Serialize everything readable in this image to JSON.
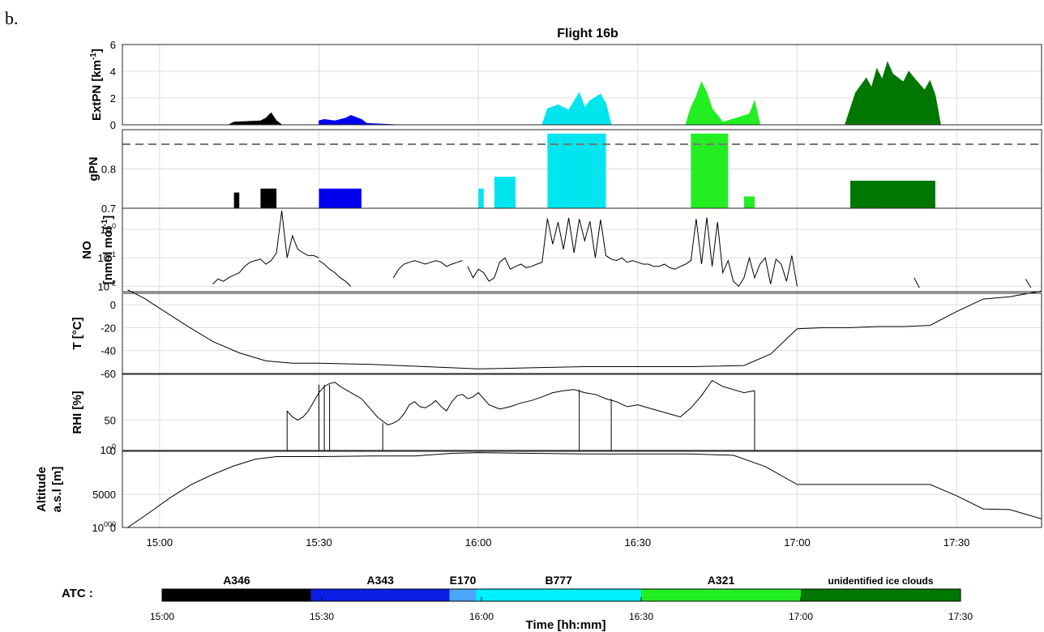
{
  "panel_letter": "b.",
  "chart_data": {
    "type": "line",
    "title": "Flight 16b",
    "xlabel": "Time [hh:mm]",
    "x_ticks": [
      "15:00",
      "15:30",
      "16:00",
      "16:30",
      "17:00",
      "17:30"
    ],
    "xlim": [
      "14:53",
      "17:46"
    ],
    "grid": true,
    "panels": [
      {
        "ylabel": "ExtPN [km-1]",
        "ylim": [
          0,
          6
        ],
        "yticks": [
          "0",
          "2",
          "4",
          "6"
        ],
        "series": [
          {
            "color": "#000000",
            "x": [
              "15:00",
              "15:13",
              "15:14",
              "15:19",
              "15:20",
              "15:21",
              "15:22",
              "15:23",
              "15:30"
            ],
            "y": [
              0,
              0,
              0.2,
              0.3,
              0.5,
              0.9,
              0.3,
              0,
              0
            ]
          },
          {
            "color": "#0000ee",
            "x": [
              "15:30",
              "15:31",
              "15:33",
              "15:35",
              "15:36",
              "15:38",
              "15:39",
              "15:45",
              "15:55"
            ],
            "y": [
              0.3,
              0.4,
              0.3,
              0.5,
              0.7,
              0.4,
              0.1,
              0,
              0
            ]
          },
          {
            "color": "#00e5ee",
            "x": [
              "15:55",
              "16:12",
              "16:13",
              "16:15",
              "16:17",
              "16:19",
              "16:20",
              "16:21",
              "16:23",
              "16:24",
              "16:25",
              "16:30"
            ],
            "y": [
              0,
              0,
              1.2,
              1.5,
              1.1,
              2.4,
              1.3,
              1.8,
              2.3,
              1.6,
              0,
              0
            ]
          },
          {
            "color": "#22ee22",
            "x": [
              "16:30",
              "16:39",
              "16:40",
              "16:41",
              "16:42",
              "16:43",
              "16:44",
              "16:46",
              "16:51",
              "16:52",
              "16:53",
              "17:00"
            ],
            "y": [
              0,
              0,
              1.3,
              2.1,
              3.2,
              2.4,
              1.2,
              0.2,
              0.8,
              1.8,
              0,
              0
            ]
          },
          {
            "color": "#007700",
            "x": [
              "17:00",
              "17:09",
              "17:10",
              "17:11",
              "17:13",
              "17:14",
              "17:15",
              "17:16",
              "17:17",
              "17:18",
              "17:20",
              "17:21",
              "17:22",
              "17:24",
              "17:25",
              "17:26",
              "17:27"
            ],
            "y": [
              0,
              0,
              1.2,
              2.4,
              3.5,
              2.8,
              4.2,
              3.4,
              4.7,
              3.8,
              3.2,
              4.0,
              3.5,
              2.6,
              3.3,
              2.2,
              0
            ]
          }
        ]
      },
      {
        "ylabel": "gPN",
        "ylim": [
          0.7,
          0.9
        ],
        "yticks": [
          "0.7",
          "0.8"
        ],
        "reference_line": 0.9,
        "blocks": [
          {
            "color": "#000000",
            "ranges": [
              [
                "15:14",
                "15:15",
                "0.74"
              ],
              [
                "15:19",
                "15:22",
                "0.75"
              ]
            ]
          },
          {
            "color": "#0000ee",
            "ranges": [
              [
                "15:30",
                "15:38",
                "0.75"
              ]
            ]
          },
          {
            "color": "#00e5ee",
            "ranges": [
              [
                "16:00",
                "16:01",
                "0.75"
              ],
              [
                "16:03",
                "16:07",
                "0.78"
              ],
              [
                "16:13",
                "16:24",
                "0.89"
              ]
            ]
          },
          {
            "color": "#22ee22",
            "ranges": [
              [
                "16:40",
                "16:47",
                "0.89"
              ],
              [
                "16:50",
                "16:52",
                "0.73"
              ]
            ]
          },
          {
            "color": "#007700",
            "ranges": [
              [
                "17:10",
                "17:26",
                "0.77"
              ]
            ]
          }
        ]
      },
      {
        "ylabel": "NO [nmol mol-1]",
        "scale": "log",
        "ylim": [
          0.0065,
          5.5
        ],
        "yticks": [
          "10-2",
          "10-1",
          "100"
        ],
        "series": [
          {
            "color": "#000000",
            "x": [
              "15:10",
              "15:11",
              "15:12",
              "15:13",
              "15:14",
              "15:15",
              "15:16",
              "15:17",
              "15:18",
              "15:19",
              "15:20",
              "15:21",
              "15:22",
              "15:23",
              "15:24",
              "15:25",
              "15:26",
              "15:27",
              "15:28",
              "15:29",
              "15:30"
            ],
            "y": [
              0.012,
              0.018,
              0.015,
              0.02,
              0.025,
              0.03,
              0.05,
              0.07,
              0.08,
              0.09,
              0.06,
              0.08,
              0.15,
              4.5,
              0.1,
              0.6,
              0.2,
              0.15,
              0.12,
              0.12,
              0.1
            ]
          },
          {
            "color": "#000000",
            "x": [
              "15:30",
              "15:31",
              "15:32",
              "15:33",
              "15:34",
              "15:35",
              "15:36"
            ],
            "y": [
              0.08,
              0.06,
              0.04,
              0.03,
              0.02,
              0.015,
              0.01
            ]
          },
          {
            "color": "#000000",
            "x": [
              "15:44",
              "15:45",
              "15:46",
              "15:47",
              "15:48",
              "15:49",
              "15:50",
              "15:51",
              "15:52",
              "15:53",
              "15:54",
              "15:55",
              "15:56",
              "15:57"
            ],
            "y": [
              0.02,
              0.04,
              0.06,
              0.07,
              0.08,
              0.07,
              0.06,
              0.07,
              0.08,
              0.07,
              0.05,
              0.06,
              0.07,
              0.08
            ]
          },
          {
            "color": "#000000",
            "x": [
              "15:58",
              "15:59",
              "16:00",
              "16:01",
              "16:02",
              "16:03",
              "16:04",
              "16:05",
              "16:06",
              "16:07",
              "16:08",
              "16:09",
              "16:10",
              "16:11",
              "16:12",
              "16:13",
              "16:14",
              "16:15",
              "16:16",
              "16:17",
              "16:18",
              "16:19",
              "16:20",
              "16:21",
              "16:22",
              "16:23",
              "16:24",
              "16:25",
              "16:26",
              "16:27",
              "16:28",
              "16:29",
              "16:30"
            ],
            "y": [
              0.05,
              0.02,
              0.04,
              0.03,
              0.015,
              0.02,
              0.07,
              0.1,
              0.04,
              0.05,
              0.06,
              0.045,
              0.05,
              0.06,
              0.07,
              2.4,
              0.3,
              1.8,
              0.2,
              2.5,
              0.15,
              2.3,
              0.4,
              1.9,
              0.1,
              2.2,
              0.12,
              0.09,
              0.08,
              0.1,
              0.07,
              0.08,
              0.07
            ]
          },
          {
            "color": "#000000",
            "x": [
              "16:30",
              "16:31",
              "16:32",
              "16:33",
              "16:34",
              "16:35",
              "16:36",
              "16:37",
              "16:38",
              "16:39",
              "16:40",
              "16:41",
              "16:42",
              "16:43",
              "16:44",
              "16:45",
              "16:46",
              "16:47",
              "16:48",
              "16:49",
              "16:50",
              "16:51",
              "16:52",
              "16:53",
              "16:54",
              "16:55",
              "16:56",
              "16:57",
              "16:58",
              "16:59",
              "17:00"
            ],
            "y": [
              0.07,
              0.06,
              0.06,
              0.05,
              0.05,
              0.06,
              0.045,
              0.04,
              0.05,
              0.06,
              0.08,
              2.3,
              0.06,
              2.6,
              0.05,
              1.8,
              0.03,
              0.08,
              0.015,
              0.01,
              0.02,
              0.1,
              0.02,
              0.06,
              0.1,
              0.012,
              0.09,
              0.06,
              0.015,
              0.12,
              0.01
            ]
          },
          {
            "color": "#000000",
            "x": [
              "17:22",
              "17:23"
            ],
            "y": [
              0.02,
              0.009
            ]
          },
          {
            "color": "#000000",
            "x": [
              "17:43",
              "17:44"
            ],
            "y": [
              0.018,
              0.009
            ]
          }
        ]
      },
      {
        "ylabel": "T [°C]",
        "ylim": [
          -60,
          10
        ],
        "yticks": [
          "-60",
          "-40",
          "-20",
          "0"
        ],
        "series": [
          {
            "color": "#000000",
            "x": [
              "14:54",
              "14:57",
              "15:00",
              "15:05",
              "15:10",
              "15:15",
              "15:20",
              "15:25",
              "15:30",
              "15:40",
              "15:50",
              "16:00",
              "16:10",
              "16:20",
              "16:30",
              "16:40",
              "16:50",
              "16:55",
              "17:00",
              "17:05",
              "17:10",
              "17:15",
              "17:20",
              "17:25",
              "17:30",
              "17:35",
              "17:40",
              "17:46"
            ],
            "y": [
              13,
              6,
              -3,
              -18,
              -32,
              -42,
              -49,
              -51,
              -51,
              -52,
              -54,
              -56,
              -55,
              -54,
              -54,
              -54,
              -53,
              -43,
              -21,
              -20,
              -20,
              -19,
              -19,
              -18,
              -6,
              5,
              7,
              12
            ]
          }
        ]
      },
      {
        "ylabel": "RHI [%]",
        "ylim": [
          0,
          125
        ],
        "yticks": [
          "0",
          "50",
          "100"
        ],
        "series": [
          {
            "color": "#000000",
            "x": [
              "15:24",
              "15:25",
              "15:26",
              "15:27",
              "15:28",
              "15:29",
              "15:30",
              "15:31",
              "15:32",
              "15:33",
              "15:34",
              "15:35",
              "15:36",
              "15:37",
              "15:38",
              "15:39",
              "15:40",
              "15:41",
              "15:42",
              "15:43",
              "15:44",
              "15:45",
              "15:46",
              "15:47",
              "15:48",
              "15:49",
              "15:50",
              "15:51",
              "15:52",
              "15:53",
              "15:54",
              "15:55",
              "15:56",
              "15:57",
              "15:58",
              "15:59",
              "16:00",
              "16:02",
              "16:04",
              "16:06",
              "16:08",
              "16:10",
              "16:12",
              "16:14",
              "16:16",
              "16:18",
              "16:20",
              "16:22",
              "16:24",
              "16:26",
              "16:28",
              "16:30",
              "16:32",
              "16:34",
              "16:36",
              "16:38",
              "16:40",
              "16:42",
              "16:44",
              "16:46",
              "16:48",
              "16:50",
              "16:52"
            ],
            "y": [
              65,
              55,
              50,
              55,
              65,
              80,
              95,
              105,
              110,
              112,
              105,
              100,
              95,
              90,
              85,
              75,
              65,
              55,
              48,
              42,
              45,
              50,
              60,
              75,
              80,
              72,
              70,
              75,
              82,
              72,
              65,
              80,
              90,
              92,
              85,
              88,
              95,
              75,
              68,
              72,
              78,
              82,
              88,
              95,
              98,
              100,
              95,
              92,
              85,
              80,
              72,
              75,
              70,
              65,
              60,
              55,
              70,
              90,
              115,
              105,
              100,
              95,
              98
            ]
          },
          {
            "color": "#000000",
            "x": [
              "15:24",
              "15:24"
            ],
            "y": [
              65,
              0
            ]
          },
          {
            "color": "#000000",
            "x": [
              "15:30",
              "15:30"
            ],
            "y": [
              108,
              0
            ]
          },
          {
            "color": "#000000",
            "x": [
              "15:31",
              "15:31"
            ],
            "y": [
              108,
              0
            ]
          },
          {
            "color": "#000000",
            "x": [
              "15:32",
              "15:32"
            ],
            "y": [
              108,
              0
            ]
          },
          {
            "color": "#000000",
            "x": [
              "15:42",
              "15:42"
            ],
            "y": [
              45,
              0
            ]
          },
          {
            "color": "#000000",
            "x": [
              "16:19",
              "16:19"
            ],
            "y": [
              100,
              0
            ]
          },
          {
            "color": "#000000",
            "x": [
              "16:25",
              "16:25"
            ],
            "y": [
              85,
              0
            ]
          },
          {
            "color": "#000000",
            "x": [
              "16:52",
              "16:52"
            ],
            "y": [
              98,
              0
            ]
          }
        ]
      },
      {
        "ylabel": "Altitude a.s.l [m]",
        "ylim": [
          0,
          11500
        ],
        "yticks": [
          "0",
          "5000",
          "10000"
        ],
        "series": [
          {
            "color": "#000000",
            "x": [
              "14:54",
              "14:58",
              "15:02",
              "15:06",
              "15:10",
              "15:14",
              "15:18",
              "15:22",
              "15:26",
              "15:30",
              "15:40",
              "15:48",
              "15:55",
              "16:00",
              "16:10",
              "16:20",
              "16:30",
              "16:40",
              "16:48",
              "16:54",
              "17:00",
              "17:10",
              "17:20",
              "17:25",
              "17:30",
              "17:35",
              "17:40",
              "17:46"
            ],
            "y": [
              0,
              2200,
              4500,
              6500,
              8000,
              9300,
              10300,
              10700,
              10700,
              10700,
              10800,
              10800,
              11200,
              11300,
              11200,
              11100,
              11100,
              11100,
              10900,
              9200,
              6500,
              6500,
              6500,
              6500,
              4800,
              2800,
              2700,
              1300
            ]
          }
        ]
      }
    ],
    "atc": {
      "label": "ATC :",
      "segments": [
        {
          "label": "A346",
          "start": "15:00",
          "end": "15:28",
          "color": "#000000"
        },
        {
          "label": "A343",
          "start": "15:28",
          "end": "15:54",
          "color": "#0a1ee6"
        },
        {
          "label": "E170",
          "start": "15:54",
          "end": "15:59",
          "color": "#4da6ff"
        },
        {
          "label": "B777",
          "start": "15:59",
          "end": "16:30",
          "color": "#00f0ff"
        },
        {
          "label": "A321",
          "start": "16:30",
          "end": "17:00",
          "color": "#22ee22"
        },
        {
          "label": "unidentified ice clouds",
          "start": "17:00",
          "end": "17:30",
          "color": "#007700"
        }
      ],
      "ticks": [
        "15:00",
        "15:30",
        "16:00",
        "16:30",
        "17:00",
        "17:30"
      ]
    }
  }
}
